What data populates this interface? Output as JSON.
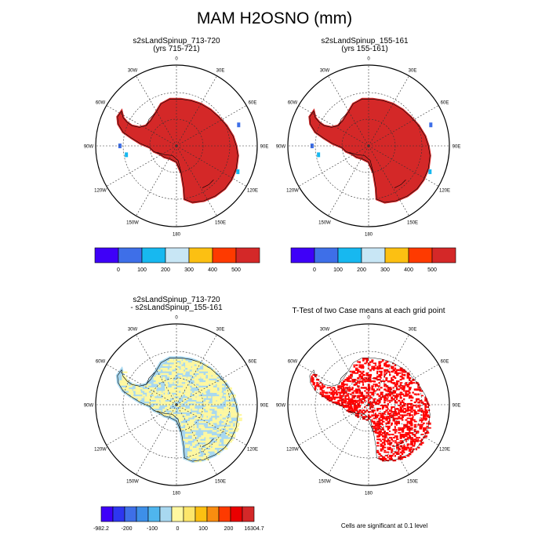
{
  "title": "MAM H2OSNO (mm)",
  "colors": {
    "water": "#ffffff",
    "coast": "#000000"
  },
  "panels": [
    {
      "title": [
        "s2sLandSpinup_713-720",
        "(yrs 715-721)"
      ],
      "type": "field"
    },
    {
      "title": [
        "s2sLandSpinup_155-161",
        "(yrs 155-161)"
      ],
      "type": "field"
    },
    {
      "title": [
        "s2sLandSpinup_713-720",
        "- s2sLandSpinup_155-161"
      ],
      "type": "diff"
    },
    {
      "title": [
        "T-Test of two Case means at each grid point",
        ""
      ],
      "type": "ttest"
    }
  ],
  "lon_labels": [
    "0",
    "30E",
    "60E",
    "90E",
    "120E",
    "150E",
    "180",
    "150W",
    "120W",
    "90W",
    "60W",
    "30W"
  ],
  "labelbars": {
    "field": {
      "colors": [
        "#3e00f8",
        "#3e6fe8",
        "#17b8f0",
        "#c8e6f5",
        "#fcc012",
        "#fe3a00",
        "#d42828"
      ],
      "labels": [
        "0",
        "100",
        "200",
        "300",
        "400",
        "500"
      ]
    },
    "diff": {
      "colors": [
        "#3e00f8",
        "#2d36f0",
        "#3e6fe8",
        "#3d8fe8",
        "#4fb5ee",
        "#a8d8f0",
        "#fff8a0",
        "#fde66a",
        "#fcc012",
        "#f98d10",
        "#fe3a00",
        "#ea0000",
        "#d42828"
      ],
      "labels": [
        "-982.2",
        "-200",
        "-100",
        "0",
        "100",
        "200",
        "16304.7"
      ]
    }
  },
  "footnote": "Cells are significant at 0.1 level",
  "chart_data": [
    {
      "type": "heatmap",
      "title": "s2sLandSpinup_713-720 (yrs 715-721)",
      "projection": "polar stereographic, south pole",
      "field": "H2OSNO",
      "units": "mm",
      "levels": [
        0,
        100,
        200,
        300,
        400,
        500
      ],
      "dominant_value": "above 500"
    },
    {
      "type": "heatmap",
      "title": "s2sLandSpinup_155-161 (yrs 155-161)",
      "projection": "polar stereographic, south pole",
      "field": "H2OSNO",
      "units": "mm",
      "levels": [
        0,
        100,
        200,
        300,
        400,
        500
      ],
      "dominant_value": "above 500"
    },
    {
      "type": "heatmap",
      "title": "s2sLandSpinup_713-720 - s2sLandSpinup_155-161",
      "projection": "polar stereographic, south pole",
      "levels": [
        -982.2,
        -200,
        -100,
        0,
        100,
        200,
        16304.7
      ],
      "dominant_values": "between -100 and 100"
    },
    {
      "type": "heatmap",
      "title": "T-Test of two Case means at each grid point",
      "projection": "polar stereographic, south pole",
      "note": "Cells are significant at 0.1 level"
    }
  ]
}
